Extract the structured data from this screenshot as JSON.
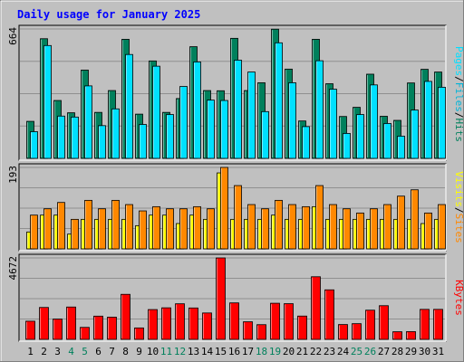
{
  "colors": {
    "background": "#c0c0c0",
    "title": "#0000ff",
    "hits": "#00805c",
    "files": "#00e0ff",
    "pages": "#00b4d8",
    "sites": "#ffff00",
    "visits": "#ff8800",
    "kbytes": "#ff0000",
    "weekend_label": "#00805c",
    "weekday_label": "#000000"
  },
  "chart_data": {
    "title": "Daily usage for January 2025",
    "type": "bar",
    "days": [
      "1",
      "2",
      "3",
      "4",
      "5",
      "6",
      "7",
      "8",
      "9",
      "10",
      "11",
      "12",
      "13",
      "14",
      "15",
      "16",
      "17",
      "18",
      "19",
      "20",
      "21",
      "22",
      "23",
      "24",
      "25",
      "26",
      "27",
      "28",
      "29",
      "30",
      "31"
    ],
    "weekend_days": [
      "4",
      "5",
      "11",
      "12",
      "18",
      "19",
      "25",
      "26"
    ],
    "panels": [
      {
        "name": "hits_files_pages",
        "ymax_label": "664",
        "ymax": 664,
        "legend": [
          {
            "text": "Hits",
            "color": "#00805c"
          },
          {
            "text": "/",
            "color": "#000000"
          },
          {
            "text": "Files",
            "color": "#00b4d8"
          },
          {
            "text": "/",
            "color": "#000000"
          },
          {
            "text": "Pages",
            "color": "#00e0ff"
          }
        ],
        "series": [
          {
            "name": "Hits",
            "color": "#00805c",
            "values": [
              190,
              614,
              297,
              234,
              453,
              236,
              348,
              611,
              227,
              500,
              236,
              307,
              573,
              348,
              347,
              616,
              348,
              388,
              663,
              458,
              192,
              611,
              383,
              215,
              262,
              432,
              216,
              195,
              387,
              457,
              443
            ]
          },
          {
            "name": "Files",
            "color": "#00e0ff",
            "values": [
              137,
              579,
              217,
              212,
              372,
              168,
              254,
              533,
              174,
              473,
              225,
              369,
              495,
              299,
              297,
              504,
              443,
              240,
              593,
              388,
              163,
              501,
              355,
              128,
              225,
              377,
              179,
              114,
              248,
              395,
              365
            ]
          }
        ]
      },
      {
        "name": "sites_visits",
        "ymax_label": "193",
        "ymax": 193,
        "legend": [
          {
            "text": "Sites",
            "color": "#ff8800"
          },
          {
            "text": "/",
            "color": "#000000"
          },
          {
            "text": "Visits",
            "color": "#ffff00"
          }
        ],
        "series": [
          {
            "name": "Sites",
            "color": "#ffff00",
            "values": [
              40,
              80,
              80,
              35,
              70,
              70,
              70,
              70,
              55,
              80,
              80,
              60,
              80,
              70,
              180,
              70,
              70,
              70,
              80,
              70,
              70,
              100,
              70,
              70,
              70,
              70,
              70,
              70,
              70,
              60,
              70
            ]
          },
          {
            "name": "Visits",
            "color": "#ff8800",
            "values": [
              80,
              95,
              110,
              70,
              115,
              95,
              115,
              105,
              90,
              100,
              95,
              95,
              100,
              95,
              193,
              150,
              105,
              95,
              115,
              105,
              100,
              150,
              105,
              95,
              85,
              95,
              105,
              125,
              140,
              85,
              105
            ]
          }
        ]
      },
      {
        "name": "kbytes",
        "ymax_label": "4672",
        "ymax": 4672,
        "legend": [
          {
            "text": "KBytes",
            "color": "#ff0000"
          }
        ],
        "series": [
          {
            "name": "KBytes",
            "color": "#ff0000",
            "values": [
              1043,
              1831,
              1165,
              1856,
              688,
              1333,
              1275,
              2584,
              657,
              1710,
              1811,
              2042,
              1802,
              1515,
              4672,
              2093,
              1010,
              844,
              2072,
              2048,
              1337,
              3593,
              2842,
              851,
              901,
              1675,
              1933,
              438,
              445,
              1722,
              1722
            ]
          }
        ]
      }
    ]
  }
}
